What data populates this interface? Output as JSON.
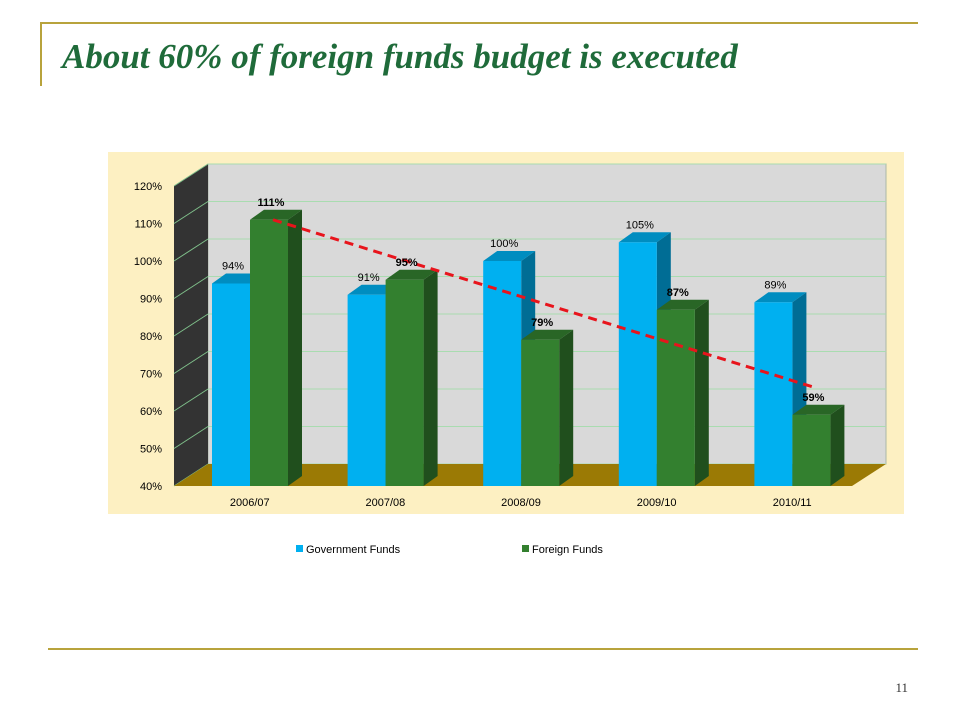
{
  "slide": {
    "title": "About 60% of foreign funds budget is executed",
    "page_number": "11"
  },
  "colors": {
    "accent_rule": "#b8a33c",
    "title": "#1f6b3a",
    "chart_background": "#fdf0c2",
    "plot_wall": "#d9d9d9",
    "floor": "#9b7a05",
    "side_wall": "#333333",
    "government": "#00b0f0",
    "foreign": "#33802f",
    "trend": "#e8141c"
  },
  "chart_data": {
    "type": "bar",
    "style": "3d-clustered-column",
    "categories": [
      "2006/07",
      "2007/08",
      "2008/09",
      "2009/10",
      "2010/11"
    ],
    "series": [
      {
        "name": "Government Funds",
        "values": [
          94,
          91,
          100,
          105,
          89
        ],
        "labels": [
          "94%",
          "91%",
          "100%",
          "105%",
          "89%"
        ]
      },
      {
        "name": "Foreign Funds",
        "values": [
          111,
          95,
          79,
          87,
          59
        ],
        "labels": [
          "111%",
          "95%",
          "79%",
          "87%",
          "59%"
        ]
      }
    ],
    "y_ticks": [
      "40%",
      "50%",
      "60%",
      "70%",
      "80%",
      "90%",
      "100%",
      "110%",
      "120%"
    ],
    "ylim": [
      40,
      120
    ],
    "trendline": {
      "series": "Foreign Funds",
      "style": "dashed",
      "color": "#e8141c"
    },
    "legend_position": "bottom",
    "grid": true
  }
}
